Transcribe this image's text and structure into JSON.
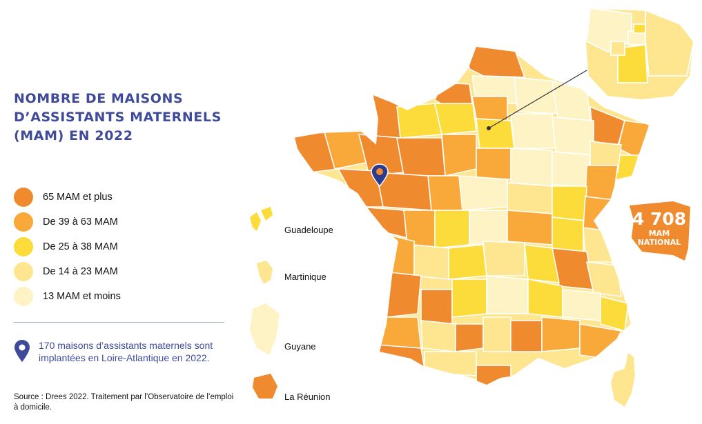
{
  "title": "NOMBRE DE MAISONS\nD’ASSISTANTS MATERNELS\n(MAM) EN 2022",
  "legend": [
    {
      "label": "65 MAM et plus",
      "color": "#f08a2e"
    },
    {
      "label": "De 39 à 63 MAM",
      "color": "#f9a93a"
    },
    {
      "label": "De 25 à 38 MAM",
      "color": "#fbdc3a"
    },
    {
      "label": "De 14 à 23 MAM",
      "color": "#fde68f"
    },
    {
      "label": "13 MAM et moins",
      "color": "#fef3c4"
    }
  ],
  "note": "170 maisons d’assistants maternels sont implantées en Loire-Atlantique en 2022.",
  "source": "Source : Drees 2022. Traitement par l’Observatoire de l’emploi à domicile.",
  "overseas": [
    {
      "label": "Guadeloupe"
    },
    {
      "label": "Martinique"
    },
    {
      "label": "Guyane"
    },
    {
      "label": "La Réunion"
    }
  ],
  "national": {
    "value": "4 708",
    "line1": "MAM",
    "line2": "NATIONAL"
  },
  "colors": {
    "accent": "#3f4a9a",
    "national_badge": "#f08a2e"
  }
}
